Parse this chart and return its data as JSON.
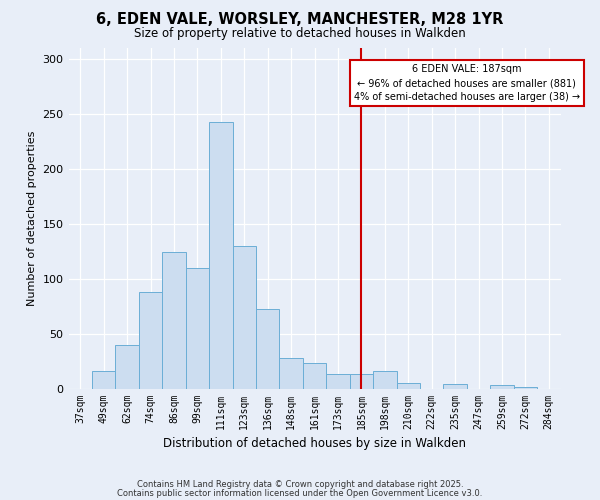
{
  "title": "6, EDEN VALE, WORSLEY, MANCHESTER, M28 1YR",
  "subtitle": "Size of property relative to detached houses in Walkden",
  "xlabel": "Distribution of detached houses by size in Walkden",
  "ylabel": "Number of detached properties",
  "bar_labels": [
    "37sqm",
    "49sqm",
    "62sqm",
    "74sqm",
    "86sqm",
    "99sqm",
    "111sqm",
    "123sqm",
    "136sqm",
    "148sqm",
    "161sqm",
    "173sqm",
    "185sqm",
    "198sqm",
    "210sqm",
    "222sqm",
    "235sqm",
    "247sqm",
    "259sqm",
    "272sqm",
    "284sqm"
  ],
  "bar_heights": [
    0,
    16,
    40,
    88,
    124,
    110,
    242,
    130,
    72,
    28,
    23,
    13,
    13,
    16,
    5,
    0,
    4,
    0,
    3,
    1,
    0
  ],
  "bar_color": "#ccddf0",
  "bar_edge_color": "#6baed6",
  "vline_color": "#cc0000",
  "annotation_title": "6 EDEN VALE: 187sqm",
  "annotation_line1": "← 96% of detached houses are smaller (881)",
  "annotation_line2": "4% of semi-detached houses are larger (38) →",
  "annotation_box_color": "#ffffff",
  "annotation_border_color": "#cc0000",
  "ylim": [
    0,
    310
  ],
  "yticks": [
    0,
    50,
    100,
    150,
    200,
    250,
    300
  ],
  "footer1": "Contains HM Land Registry data © Crown copyright and database right 2025.",
  "footer2": "Contains public sector information licensed under the Open Government Licence v3.0.",
  "bg_color": "#e8eef8",
  "plot_bg_color": "#e8eef8",
  "grid_color": "#ffffff",
  "vline_index": 12
}
